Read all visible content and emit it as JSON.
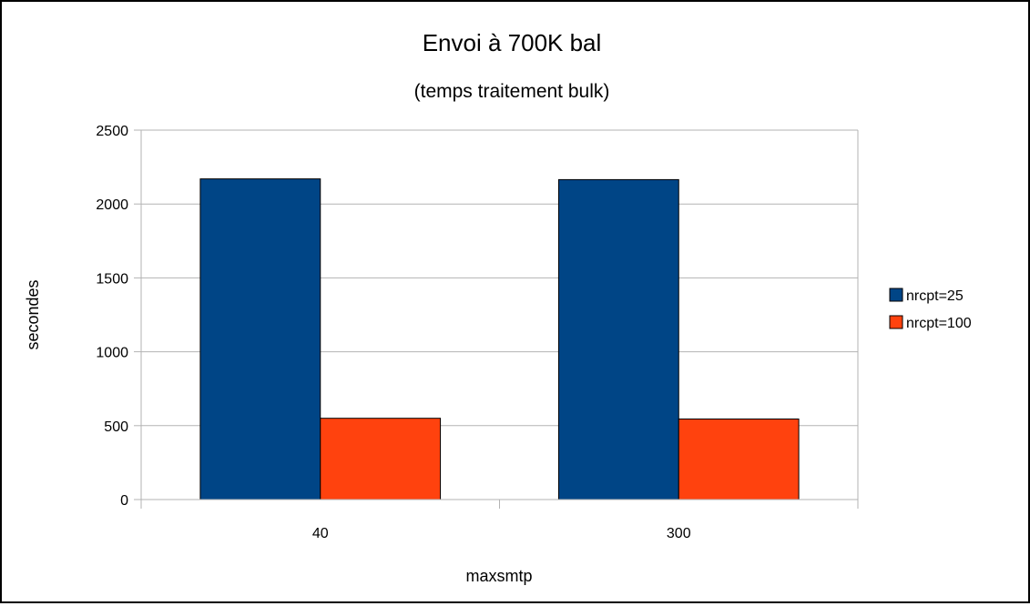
{
  "chart_data": {
    "type": "bar",
    "title": "Envoi à 700K bal",
    "subtitle": "(temps traitement bulk)",
    "xlabel": "maxsmtp",
    "ylabel": "secondes",
    "categories": [
      "40",
      "300"
    ],
    "series": [
      {
        "name": "nrcpt=25",
        "values": [
          2170,
          2165
        ],
        "color": "#004586"
      },
      {
        "name": "nrcpt=100",
        "values": [
          550,
          545
        ],
        "color": "#FF420E"
      }
    ],
    "ylim": [
      0,
      2500
    ],
    "yticks": [
      0,
      500,
      1000,
      1500,
      2000,
      2500
    ],
    "grid": true,
    "legend_position": "right"
  }
}
